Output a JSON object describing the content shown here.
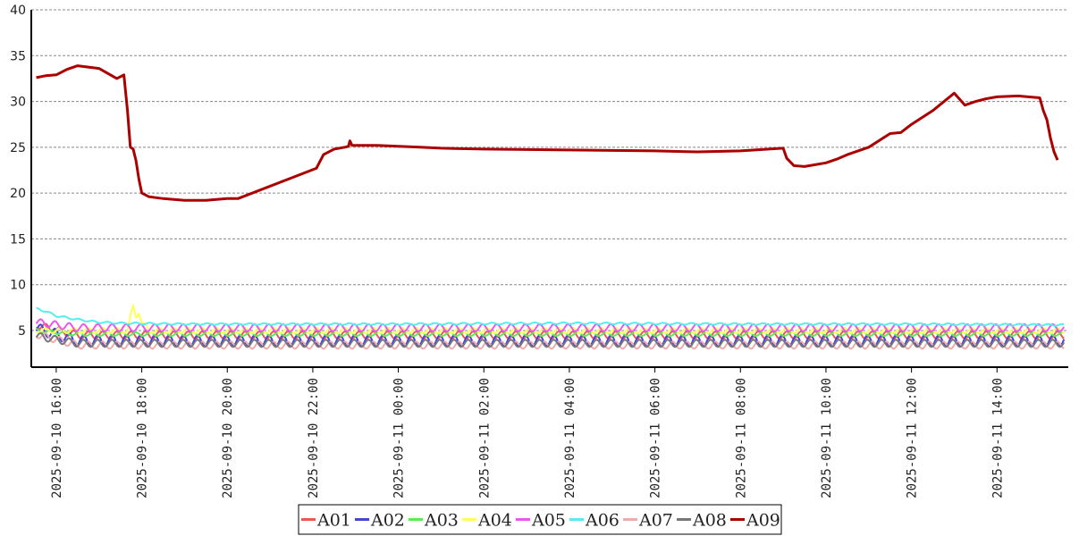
{
  "chart_data": {
    "type": "line",
    "title": "",
    "xlabel": "",
    "ylabel": "",
    "ylim": [
      1,
      40
    ],
    "yticks": [
      5,
      10,
      15,
      20,
      25,
      30,
      35,
      40
    ],
    "xlim": [
      "2025-09-10 15:25",
      "2025-09-11 15:40"
    ],
    "xticks": [
      "2025-09-10 16:00",
      "2025-09-10 18:00",
      "2025-09-10 20:00",
      "2025-09-10 22:00",
      "2025-09-11 00:00",
      "2025-09-11 02:00",
      "2025-09-11 04:00",
      "2025-09-11 06:00",
      "2025-09-11 08:00",
      "2025-09-11 10:00",
      "2025-09-11 12:00",
      "2025-09-11 14:00"
    ],
    "grid": true,
    "legend_position": "bottom",
    "series": [
      {
        "name": "A01",
        "color": "#ee5555",
        "width": 2,
        "x": [
          "2025-09-10 15:32",
          "2025-09-10 16:30",
          "2025-09-10 18:00",
          "2025-09-10 21:00",
          "2025-09-11 00:00",
          "2025-09-11 04:00",
          "2025-09-11 08:00",
          "2025-09-11 12:00",
          "2025-09-11 15:35"
        ],
        "y": [
          5.6,
          4.5,
          4.5,
          4.5,
          4.5,
          4.5,
          4.5,
          4.5,
          4.5
        ],
        "osc": 0.4
      },
      {
        "name": "A02",
        "color": "#4444dd",
        "width": 2,
        "x": [
          "2025-09-10 15:32",
          "2025-09-10 16:30",
          "2025-09-10 18:00",
          "2025-09-10 21:00",
          "2025-09-11 00:00",
          "2025-09-11 04:00",
          "2025-09-11 08:00",
          "2025-09-11 12:00",
          "2025-09-11 15:35"
        ],
        "y": [
          5.2,
          3.9,
          3.9,
          3.9,
          3.9,
          3.9,
          3.9,
          3.9,
          3.9
        ],
        "osc": 0.6
      },
      {
        "name": "A03",
        "color": "#55ee55",
        "width": 2,
        "x": [
          "2025-09-10 15:32",
          "2025-09-10 16:30",
          "2025-09-10 18:00",
          "2025-09-10 21:00",
          "2025-09-11 00:00",
          "2025-09-11 04:00",
          "2025-09-11 08:00",
          "2025-09-11 12:00",
          "2025-09-11 15:35"
        ],
        "y": [
          5.0,
          4.6,
          4.6,
          4.6,
          4.6,
          4.6,
          4.6,
          4.6,
          4.6
        ],
        "osc": 0.2
      },
      {
        "name": "A04",
        "color": "#ffff55",
        "width": 2,
        "x": [
          "2025-09-10 15:32",
          "2025-09-10 17:40",
          "2025-09-10 17:48",
          "2025-09-10 17:52",
          "2025-09-10 17:56",
          "2025-09-10 18:00",
          "2025-09-10 18:05",
          "2025-09-10 18:10",
          "2025-09-10 21:00",
          "2025-09-11 04:00",
          "2025-09-11 12:00",
          "2025-09-11 15:35"
        ],
        "y": [
          5.0,
          5.0,
          7.6,
          6.6,
          7.1,
          5.8,
          5.4,
          5.0,
          5.0,
          5.0,
          5.0,
          5.0
        ],
        "osc": 0.3
      },
      {
        "name": "A05",
        "color": "#ee55ee",
        "width": 2,
        "x": [
          "2025-09-10 15:32",
          "2025-09-10 16:30",
          "2025-09-10 18:00",
          "2025-09-10 21:00",
          "2025-09-11 00:00",
          "2025-09-11 04:00",
          "2025-09-11 08:00",
          "2025-09-11 12:00",
          "2025-09-11 15:35"
        ],
        "y": [
          5.9,
          5.3,
          5.3,
          5.3,
          5.3,
          5.3,
          5.3,
          5.3,
          5.3
        ],
        "osc": 0.4
      },
      {
        "name": "A06",
        "color": "#55eeee",
        "width": 2,
        "x": [
          "2025-09-10 15:32",
          "2025-09-10 15:45",
          "2025-09-10 16:00",
          "2025-09-10 16:30",
          "2025-09-10 17:00",
          "2025-09-10 17:30",
          "2025-09-10 19:00",
          "2025-09-11 00:00",
          "2025-09-11 04:00",
          "2025-09-11 08:00",
          "2025-09-11 12:00",
          "2025-09-11 15:35"
        ],
        "y": [
          7.4,
          7.1,
          6.6,
          6.2,
          5.9,
          5.8,
          5.7,
          5.7,
          5.8,
          5.7,
          5.7,
          5.6
        ],
        "osc": 0.1
      },
      {
        "name": "A07",
        "color": "#f4aaaa",
        "width": 2,
        "x": [
          "2025-09-10 15:32",
          "2025-09-10 16:30",
          "2025-09-10 18:00",
          "2025-09-10 21:00",
          "2025-09-11 00:00",
          "2025-09-11 04:00",
          "2025-09-11 08:00",
          "2025-09-11 12:00",
          "2025-09-11 15:35"
        ],
        "y": [
          4.6,
          3.4,
          3.4,
          3.4,
          3.4,
          3.4,
          3.4,
          3.4,
          3.4
        ],
        "osc": 0.4
      },
      {
        "name": "A08",
        "color": "#777777",
        "width": 2,
        "x": [
          "2025-09-10 15:32",
          "2025-09-10 16:30",
          "2025-09-10 18:00",
          "2025-09-10 21:00",
          "2025-09-11 00:00",
          "2025-09-11 04:00",
          "2025-09-11 08:00",
          "2025-09-11 12:00",
          "2025-09-11 15:35"
        ],
        "y": [
          4.4,
          3.6,
          3.6,
          3.6,
          3.6,
          3.6,
          3.6,
          3.6,
          3.6
        ],
        "osc": 0.4
      },
      {
        "name": "A09",
        "color": "#aa0000",
        "width": 3,
        "x": [
          "2025-09-10 15:32",
          "2025-09-10 15:45",
          "2025-09-10 16:00",
          "2025-09-10 16:15",
          "2025-09-10 16:30",
          "2025-09-10 17:00",
          "2025-09-10 17:25",
          "2025-09-10 17:35",
          "2025-09-10 17:40",
          "2025-09-10 17:44",
          "2025-09-10 17:48",
          "2025-09-10 17:52",
          "2025-09-10 17:56",
          "2025-09-10 18:00",
          "2025-09-10 18:10",
          "2025-09-10 18:30",
          "2025-09-10 19:00",
          "2025-09-10 19:30",
          "2025-09-10 20:00",
          "2025-09-10 20:15",
          "2025-09-10 22:05",
          "2025-09-10 22:15",
          "2025-09-10 22:30",
          "2025-09-10 22:45",
          "2025-09-10 22:50",
          "2025-09-10 22:52",
          "2025-09-10 22:55",
          "2025-09-10 23:30",
          "2025-09-11 00:00",
          "2025-09-11 00:30",
          "2025-09-11 01:00",
          "2025-09-11 02:00",
          "2025-09-11 04:00",
          "2025-09-11 06:00",
          "2025-09-11 07:00",
          "2025-09-11 08:00",
          "2025-09-11 09:00",
          "2025-09-11 09:05",
          "2025-09-11 09:15",
          "2025-09-11 09:30",
          "2025-09-11 10:00",
          "2025-09-11 10:15",
          "2025-09-11 10:30",
          "2025-09-11 11:00",
          "2025-09-11 11:30",
          "2025-09-11 11:45",
          "2025-09-11 12:00",
          "2025-09-11 12:30",
          "2025-09-11 13:00",
          "2025-09-11 13:15",
          "2025-09-11 13:30",
          "2025-09-11 13:45",
          "2025-09-11 14:00",
          "2025-09-11 14:30",
          "2025-09-11 15:00",
          "2025-09-11 15:05",
          "2025-09-11 15:10",
          "2025-09-11 15:15",
          "2025-09-11 15:20",
          "2025-09-11 15:25"
        ],
        "y": [
          32.6,
          32.8,
          32.9,
          33.5,
          33.9,
          33.6,
          32.5,
          32.9,
          29.0,
          25.0,
          24.8,
          23.5,
          21.5,
          20.0,
          19.6,
          19.4,
          19.2,
          19.2,
          19.4,
          19.4,
          22.7,
          24.2,
          24.8,
          25.0,
          25.1,
          25.7,
          25.2,
          25.2,
          25.1,
          25.0,
          24.9,
          24.8,
          24.7,
          24.6,
          24.5,
          24.6,
          24.9,
          23.8,
          23.0,
          22.9,
          23.3,
          23.7,
          24.2,
          25.0,
          26.5,
          26.6,
          27.5,
          29.0,
          30.9,
          29.6,
          30.0,
          30.3,
          30.5,
          30.6,
          30.4,
          29.0,
          28.0,
          26.0,
          24.5,
          23.6
        ],
        "osc": 0
      }
    ]
  }
}
